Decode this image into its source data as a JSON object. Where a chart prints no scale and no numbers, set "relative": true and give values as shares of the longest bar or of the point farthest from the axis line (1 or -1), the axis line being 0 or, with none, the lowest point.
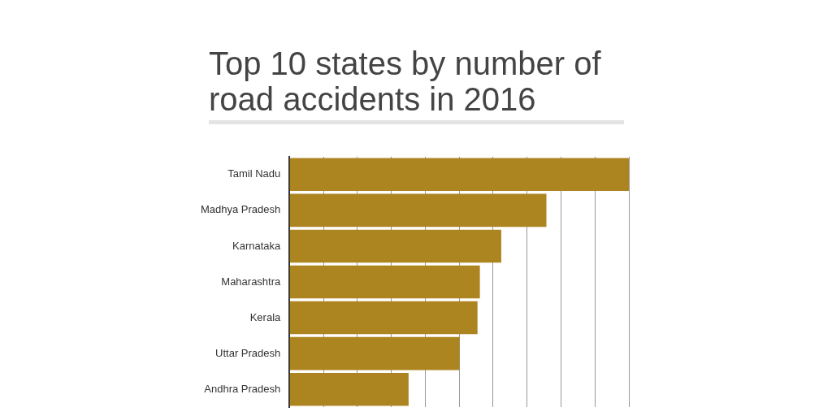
{
  "chart_data": {
    "type": "bar",
    "orientation": "horizontal",
    "relative": true,
    "title": "Top 10 states by number of road accidents in 2016",
    "categories": [
      "Tamil Nadu",
      "Madhya Pradesh",
      "Karnataka",
      "Maharashtra",
      "Kerala",
      "Uttar Pradesh",
      "Andhra Pradesh"
    ],
    "values": [
      1,
      0.757,
      0.624,
      0.561,
      0.554,
      0.501,
      0.351
    ],
    "color": "#ad8520",
    "grid": "x"
  }
}
